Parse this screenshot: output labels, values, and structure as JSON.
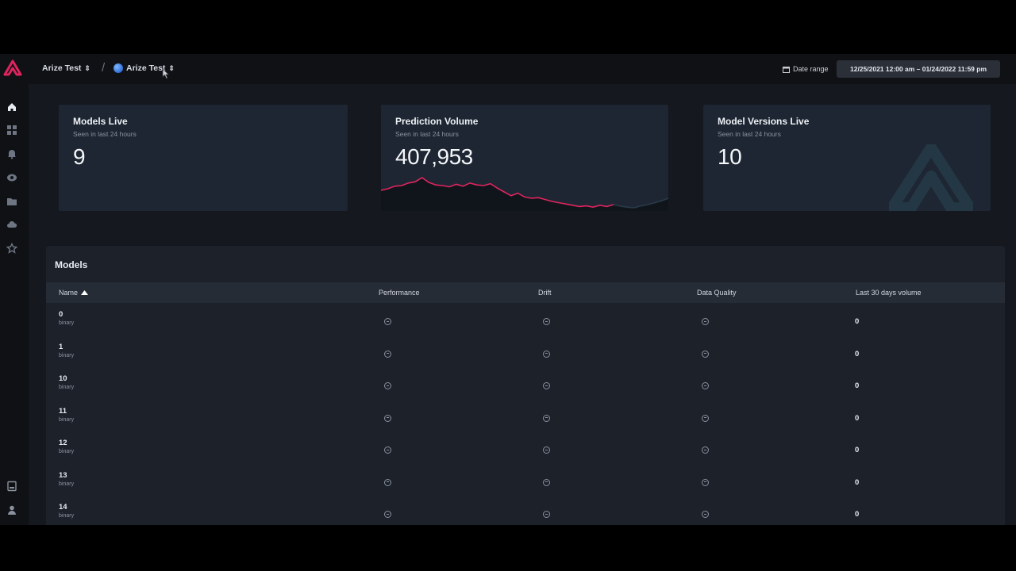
{
  "topbar": {
    "org_label": "Arize Test",
    "space_label": "Arize Test",
    "date_range_label": "Date range",
    "date_range_value": "12/25/2021 12:00 am – 01/24/2022 11:59 pm"
  },
  "sidebar": {
    "icons": [
      "home-icon",
      "dashboard-icon",
      "bell-icon",
      "monitor-icon",
      "folder-icon",
      "cloud-icon",
      "star-icon",
      "docs-icon",
      "user-icon"
    ]
  },
  "cards": [
    {
      "title": "Models Live",
      "subtitle": "Seen in last 24 hours",
      "value": "9"
    },
    {
      "title": "Prediction Volume",
      "subtitle": "Seen in last 24 hours",
      "value": "407,953"
    },
    {
      "title": "Model Versions Live",
      "subtitle": "Seen in last 24 hours",
      "value": "10"
    }
  ],
  "sparkline": {
    "color_line_high": "#e0245e",
    "color_line_low": "#2a3a4a",
    "values": [
      0.55,
      0.6,
      0.68,
      0.7,
      0.78,
      0.82,
      0.95,
      0.8,
      0.72,
      0.7,
      0.66,
      0.74,
      0.68,
      0.78,
      0.72,
      0.7,
      0.76,
      0.62,
      0.5,
      0.38,
      0.46,
      0.34,
      0.3,
      0.32,
      0.26,
      0.2,
      0.16,
      0.12,
      0.08,
      0.04,
      0.06,
      0.02,
      0.08,
      0.04,
      0.1,
      0.05,
      0.02,
      0.0,
      0.06,
      0.1,
      0.16,
      0.22,
      0.3
    ]
  },
  "models": {
    "title": "Models",
    "columns": [
      "Name",
      "Performance",
      "Drift",
      "Data Quality",
      "Last 30 days volume"
    ],
    "rows": [
      {
        "name": "0",
        "type": "binary",
        "volume": "0"
      },
      {
        "name": "1",
        "type": "binary",
        "volume": "0"
      },
      {
        "name": "10",
        "type": "binary",
        "volume": "0"
      },
      {
        "name": "11",
        "type": "binary",
        "volume": "0"
      },
      {
        "name": "12",
        "type": "binary",
        "volume": "0"
      },
      {
        "name": "13",
        "type": "binary",
        "volume": "0"
      },
      {
        "name": "14",
        "type": "binary",
        "volume": "0"
      }
    ]
  },
  "colors": {
    "accent": "#e0245e",
    "card_bg": "#1d2632",
    "panel_bg": "#1c212a"
  }
}
